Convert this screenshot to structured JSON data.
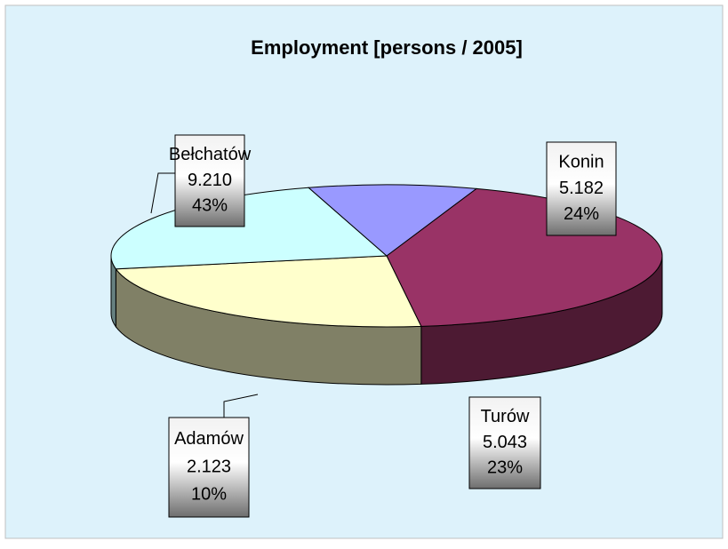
{
  "chart_data": {
    "type": "pie3d",
    "title": "Employment [persons / 2005]",
    "categories": [
      "Bełchatów",
      "Konin",
      "Turów",
      "Adamów"
    ],
    "values": [
      9210,
      5182,
      5043,
      2123
    ],
    "value_labels": [
      "9.210",
      "5.182",
      "5.043",
      "2.123"
    ],
    "percent_values": [
      43,
      24,
      23,
      10
    ],
    "percent_labels": [
      "43%",
      "24%",
      "23%",
      "10%"
    ],
    "colors": [
      "#993366",
      "#ffffcc",
      "#ccffff",
      "#9999ff"
    ]
  }
}
